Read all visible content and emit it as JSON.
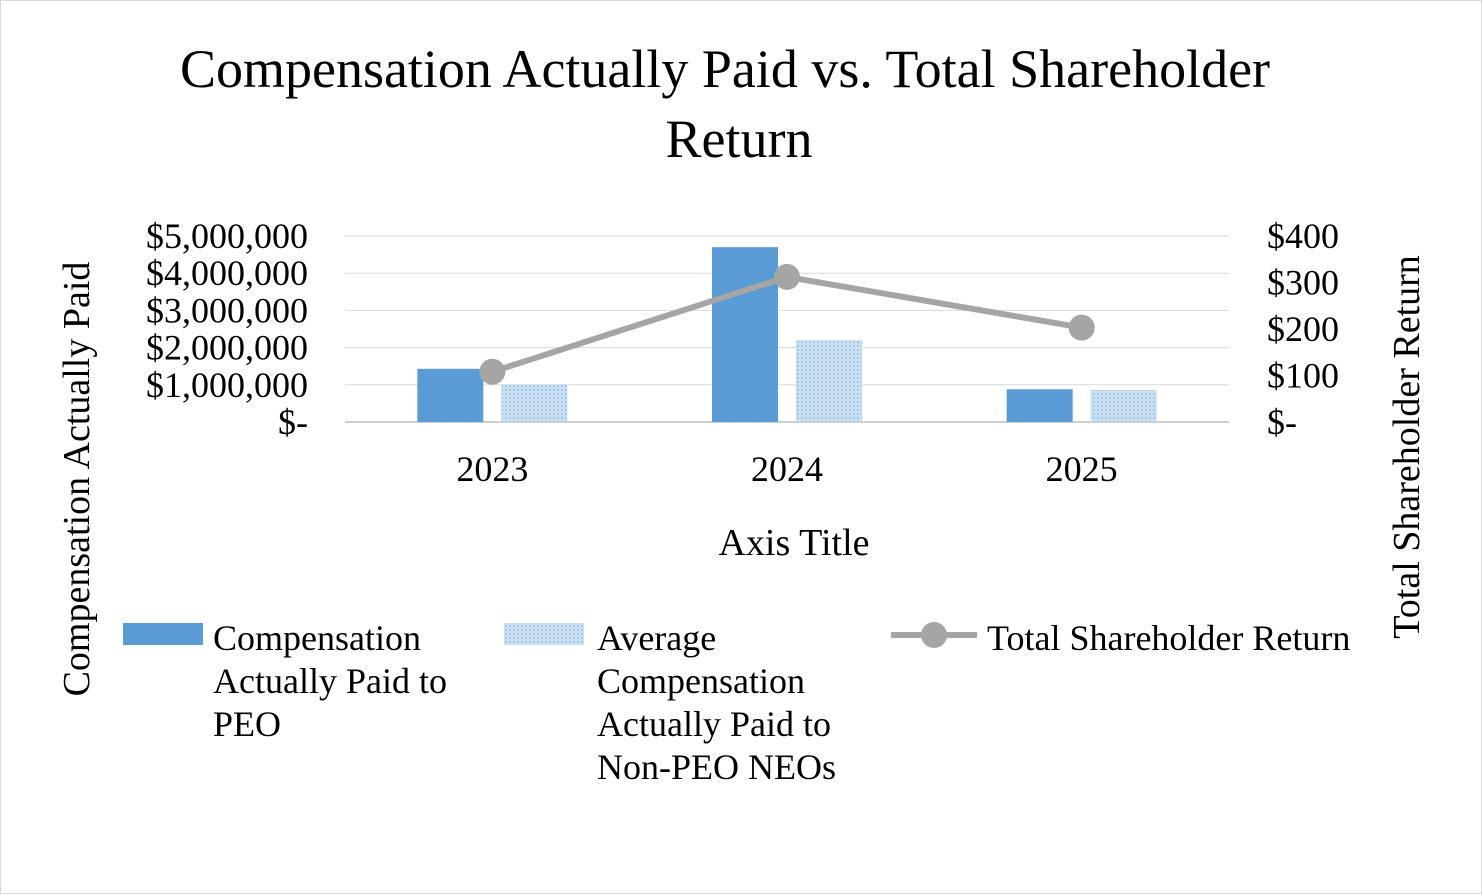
{
  "chart_data": {
    "type": "bar",
    "title_lines": [
      "Compensation Actually Paid vs. Total Shareholder",
      "Return"
    ],
    "xlabel": "Axis Title",
    "ylabel": "Compensation Actually Paid",
    "y2label": "Total Shareholder Return",
    "categories": [
      "2023",
      "2024",
      "2025"
    ],
    "ylim": [
      0,
      5000000
    ],
    "y_ticks": [
      0,
      1000000,
      2000000,
      3000000,
      4000000,
      5000000
    ],
    "y_tick_labels": [
      "$-",
      "$1,000,000",
      "$2,000,000",
      "$3,000,000",
      "$4,000,000",
      "$5,000,000"
    ],
    "y2lim": [
      0,
      400
    ],
    "y2_ticks": [
      0,
      100,
      200,
      300,
      400
    ],
    "y2_tick_labels": [
      "$-",
      "$100",
      "$200",
      "$300",
      "$400"
    ],
    "grid": true,
    "legend_position": "bottom",
    "series": [
      {
        "name": "Compensation Actually Paid to PEO",
        "legend_lines": [
          "Compensation",
          "Actually Paid to",
          "PEO"
        ],
        "type": "bar",
        "axis": "left",
        "color": "#5b9bd5",
        "values": [
          1430000,
          4700000,
          880000
        ]
      },
      {
        "name": "Average Compensation Actually Paid to Non-PEO NEOs",
        "legend_lines": [
          "Average",
          "Compensation",
          "Actually Paid to",
          "Non-PEO NEOs"
        ],
        "type": "bar",
        "axis": "left",
        "color": "#bdd7ee",
        "values": [
          1000000,
          2200000,
          860000
        ]
      },
      {
        "name": "Total Shareholder Return",
        "legend_lines": [
          "Total Shareholder Return"
        ],
        "type": "line",
        "axis": "right",
        "color": "#a5a5a5",
        "values": [
          108,
          312,
          203
        ]
      }
    ]
  }
}
